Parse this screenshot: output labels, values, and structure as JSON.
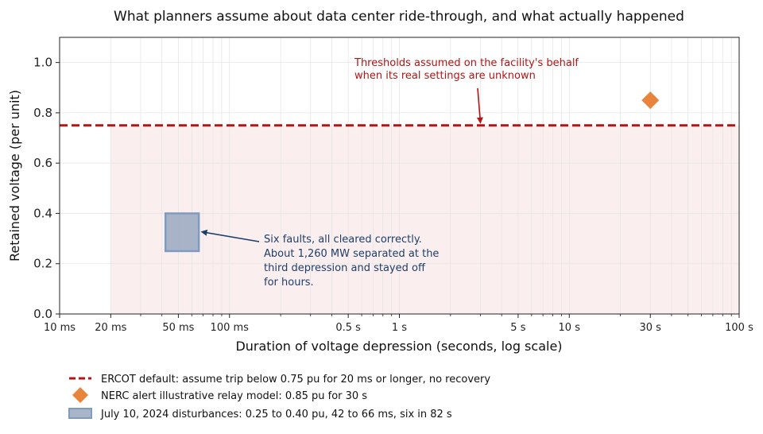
{
  "chart_data": {
    "type": "scatter",
    "title": "What planners assume about data center ride-through, and what actually happened",
    "xlabel": "Duration of voltage depression (seconds, log scale)",
    "ylabel": "Retained voltage (per unit)",
    "x_scale": "log",
    "xlim": [
      0.01,
      100
    ],
    "ylim": [
      0,
      1.1
    ],
    "grid": true,
    "x_ticks": [
      {
        "value": 0.01,
        "label": "10 ms"
      },
      {
        "value": 0.02,
        "label": "20 ms"
      },
      {
        "value": 0.05,
        "label": "50 ms"
      },
      {
        "value": 0.1,
        "label": "100 ms"
      },
      {
        "value": 0.5,
        "label": "0.5 s"
      },
      {
        "value": 1,
        "label": "1 s"
      },
      {
        "value": 5,
        "label": "5 s"
      },
      {
        "value": 10,
        "label": "10 s"
      },
      {
        "value": 30,
        "label": "30 s"
      },
      {
        "value": 100,
        "label": "100 s"
      }
    ],
    "y_ticks": [
      {
        "value": 0.0,
        "label": "0.0"
      },
      {
        "value": 0.2,
        "label": "0.2"
      },
      {
        "value": 0.4,
        "label": "0.4"
      },
      {
        "value": 0.6,
        "label": "0.6"
      },
      {
        "value": 0.8,
        "label": "0.8"
      },
      {
        "value": 1.0,
        "label": "1.0"
      }
    ],
    "series": [
      {
        "name": "ERCOT default: assume trip below 0.75 pu for 20 ms or longer, no recovery",
        "kind": "threshold-line",
        "y": 0.75,
        "x_start": 0.02,
        "color": "#b01616",
        "fill_color": "#fbeeee"
      },
      {
        "name": "NERC alert illustrative relay model: 0.85 pu for 30 s",
        "kind": "point",
        "x": 30,
        "y": 0.85,
        "color": "#e8843c"
      },
      {
        "name": "July 10, 2024 disturbances: 0.25 to 0.40 pu, 42 to 66 ms, six in 82 s",
        "kind": "range-box",
        "x": [
          0.042,
          0.066
        ],
        "y": [
          0.25,
          0.4
        ],
        "color": "#9aa8c0",
        "edge_color": "#7f9cc0"
      }
    ],
    "annotations": [
      {
        "lines": [
          "Thresholds assumed on the facility's behalf",
          "when its real settings are unknown"
        ],
        "color": "#b01616",
        "arrow_to": {
          "x": 3,
          "y": 0.75
        }
      },
      {
        "lines": [
          "Six faults, all cleared correctly.",
          "About 1,260 MW separated at the",
          "third depression and stayed off",
          "for hours."
        ],
        "color": "#1c3f6b",
        "arrow_to": {
          "x": 0.067,
          "y": 0.33
        }
      }
    ],
    "legend_position": "bottom"
  }
}
